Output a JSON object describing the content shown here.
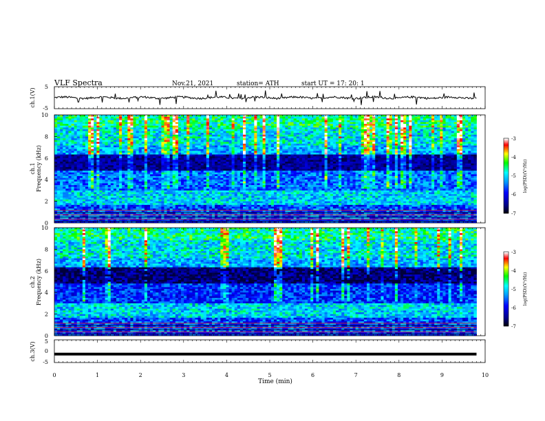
{
  "header": {
    "title": "VLF  Spectra",
    "date": "Nov.21, 2021",
    "station": "station= ATH",
    "start": "start  UT  =    17: 20: 1"
  },
  "chart_data": [
    {
      "type": "line",
      "panel": "ch1-waveform",
      "ylabel": "ch.1(V)",
      "yticklabels": [
        "5",
        "-5"
      ],
      "ylim": [
        -5,
        5
      ],
      "x_units": "min",
      "xlim": [
        0,
        10
      ],
      "trace_end": 9.8,
      "mean": 0,
      "series_color": "#000000"
    },
    {
      "type": "heatmap",
      "panel": "ch1-spectrogram",
      "ylabel": "ch.1\nFrequency (kHz)",
      "ylabel_line1": "ch.1",
      "ylabel_line2": "Frequency (kHz)",
      "ylim": [
        0,
        10
      ],
      "yticks": [
        0,
        2,
        4,
        6,
        8,
        10
      ],
      "xlim": [
        0,
        10
      ],
      "data_end": 9.8,
      "colorbar": {
        "label": "log(PSD)(V²/Hz)",
        "range": [
          -7,
          -3
        ],
        "ticks": [
          "-3",
          "-4",
          "-5",
          "-6",
          "-7"
        ]
      }
    },
    {
      "type": "heatmap",
      "panel": "ch2-spectrogram",
      "ylabel_line1": "ch.2",
      "ylabel_line2": "Frequency (kHz)",
      "ylim": [
        0,
        10
      ],
      "yticks": [
        0,
        2,
        4,
        6,
        8,
        10
      ],
      "xlim": [
        0,
        10
      ],
      "data_end": 9.8,
      "colorbar": {
        "label": "log(PSD)(V²/Hz)",
        "range": [
          -7,
          -3
        ],
        "ticks": [
          "-3",
          "-4",
          "-5",
          "-6",
          "-7"
        ]
      }
    },
    {
      "type": "line",
      "panel": "ch3-waveform",
      "ylabel": "ch.3(V)",
      "yticklabels": [
        "5",
        "0",
        "-5"
      ],
      "ylim": [
        -5,
        5
      ],
      "xlim": [
        0,
        10
      ],
      "trace_end": 9.8,
      "mean": -1.3,
      "series_color": "#000000"
    }
  ],
  "xaxis": {
    "label": "Time  (min)",
    "ticks": [
      "0",
      "1",
      "2",
      "3",
      "4",
      "5",
      "6",
      "7",
      "8",
      "9",
      "10"
    ]
  },
  "colors": {
    "scale": [
      "#000000",
      "#00008b",
      "#0000ff",
      "#0096ff",
      "#00ffff",
      "#00ff00",
      "#ffff00",
      "#ff0000",
      "#ffffff"
    ]
  }
}
